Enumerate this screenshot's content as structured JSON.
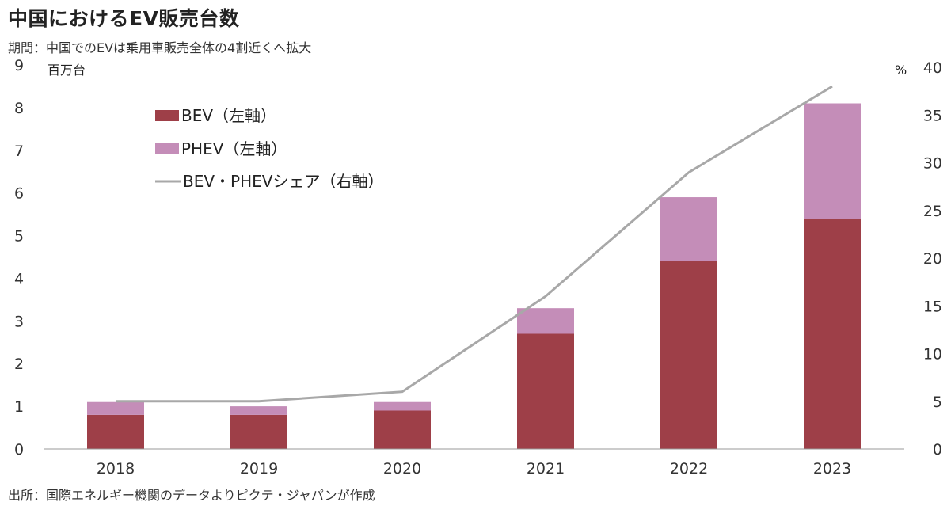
{
  "title": "中国におけるEV販売台数",
  "subtitle": "期間：中国でのEVは乗用車販売全体の4割近くへ拡大",
  "source": "出所：国際エネルギー機関のデータよりピクテ・ジャパンが作成",
  "colors": {
    "bev": "#9e3f48",
    "phev": "#c48db8",
    "share": "#a8a8a8",
    "axis": "#999999"
  },
  "chart_data": {
    "type": "bar",
    "stacked": true,
    "categories": [
      "2018",
      "2019",
      "2020",
      "2021",
      "2022",
      "2023"
    ],
    "series": [
      {
        "name": "BEV（左軸）",
        "axis": "left",
        "kind": "bar",
        "values": [
          0.8,
          0.8,
          0.9,
          2.7,
          4.4,
          5.4
        ]
      },
      {
        "name": "PHEV（左軸）",
        "axis": "left",
        "kind": "bar",
        "values": [
          0.3,
          0.2,
          0.2,
          0.6,
          1.5,
          2.7
        ]
      },
      {
        "name": "BEV・PHEVシェア（右軸）",
        "axis": "right",
        "kind": "line",
        "values": [
          5,
          5,
          6,
          16,
          29,
          38
        ]
      }
    ],
    "y_left": {
      "unit": "百万台",
      "ylim": [
        0,
        9
      ],
      "ticks": [
        "0",
        "1",
        "2",
        "3",
        "4",
        "5",
        "6",
        "7",
        "8",
        "9"
      ]
    },
    "y_right": {
      "unit": "%",
      "ylim": [
        0,
        40
      ],
      "ticks": [
        "0",
        "5",
        "10",
        "15",
        "20",
        "25",
        "30",
        "35",
        "40"
      ]
    },
    "legend_placement": "top-left",
    "grid": false
  }
}
